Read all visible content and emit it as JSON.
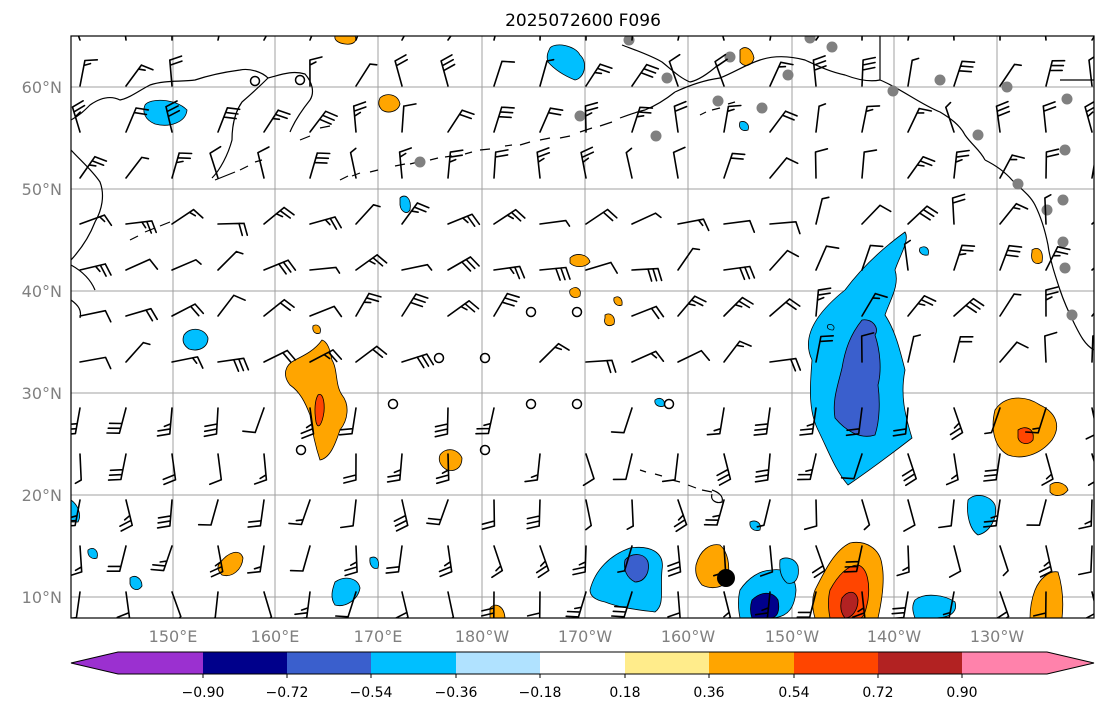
{
  "title": "2025072600 F096",
  "lat_labels": [
    "60°N",
    "50°N",
    "40°N",
    "30°N",
    "20°N",
    "10°N"
  ],
  "lon_labels": [
    "150°E",
    "160°E",
    "170°E",
    "180°W",
    "170°W",
    "160°W",
    "150°W",
    "140°W",
    "130°W"
  ],
  "colorbar": {
    "ticks": [
      "−0.90",
      "−0.72",
      "−0.54",
      "−0.36",
      "−0.18",
      "0.18",
      "0.36",
      "0.54",
      "0.72",
      "0.90"
    ],
    "colors": [
      "#9b30d0",
      "#00008b",
      "#3a5fcd",
      "#00bfff",
      "#b0e2ff",
      "#ffffff",
      "#ffec8b",
      "#ffa500",
      "#ff4500",
      "#b22222",
      "#ff82ab"
    ]
  }
}
